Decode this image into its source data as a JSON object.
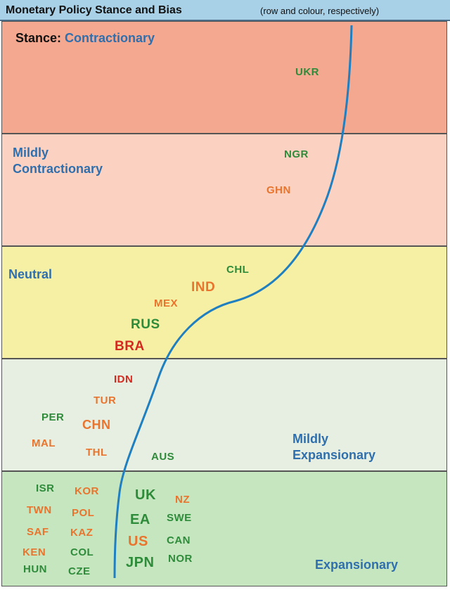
{
  "header": {
    "title": "Monetary Policy Stance and Bias",
    "subtitle": "(row and colour, respectively)"
  },
  "bands": {
    "contractionary": {
      "prefix": "Stance:",
      "label": "Contractionary",
      "color": "#f4a890"
    },
    "mildly_contractionary": {
      "line1": "Mildly",
      "line2": "Contractionary",
      "color": "#fbd2c2"
    },
    "neutral": {
      "label": "Neutral",
      "color": "#f6f0a4"
    },
    "mildly_expansionary": {
      "line1": "Mildly",
      "line2": "Expansionary",
      "color": "#e6efe1"
    },
    "expansionary": {
      "label": "Expansionary",
      "color": "#c6e6c0"
    }
  },
  "bias_colors": {
    "green": "#2e8b3a",
    "orange": "#e8742d",
    "red": "#d42a20"
  },
  "curve_color": "#1f7fc0",
  "countries": {
    "ukr": "UKR",
    "ngr": "NGR",
    "ghn": "GHN",
    "chl": "CHL",
    "ind": "IND",
    "mex": "MEX",
    "rus": "RUS",
    "bra": "BRA",
    "idn": "IDN",
    "tur": "TUR",
    "per": "PER",
    "chn": "CHN",
    "mal": "MAL",
    "thl": "THL",
    "aus": "AUS",
    "isr": "ISR",
    "kor": "KOR",
    "uk": "UK",
    "nz": "NZ",
    "twn": "TWN",
    "pol": "POL",
    "ea": "EA",
    "swe": "SWE",
    "saf": "SAF",
    "kaz": "KAZ",
    "us": "US",
    "can": "CAN",
    "ken": "KEN",
    "col": "COL",
    "jpn": "JPN",
    "nor": "NOR",
    "hun": "HUN",
    "cze": "CZE"
  }
}
